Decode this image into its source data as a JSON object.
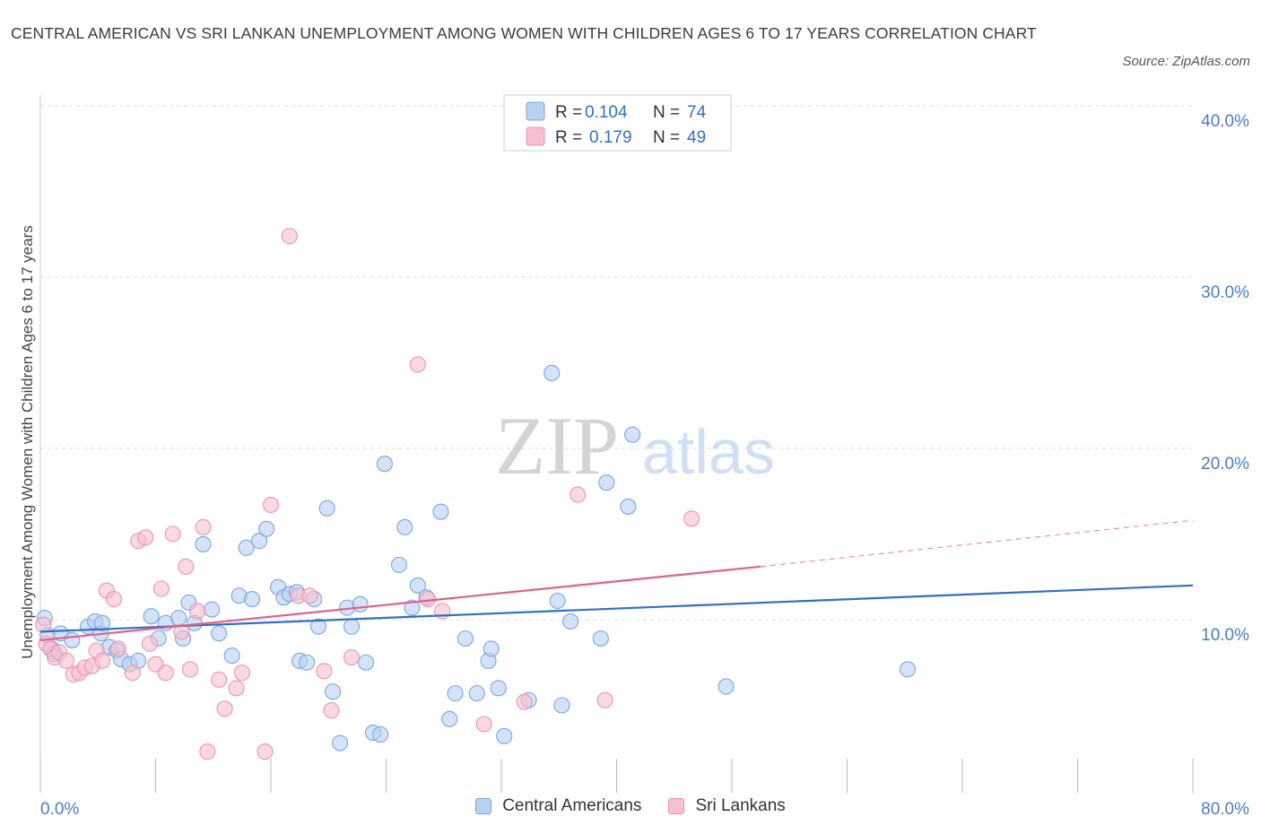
{
  "title": "CENTRAL AMERICAN VS SRI LANKAN UNEMPLOYMENT AMONG WOMEN WITH CHILDREN AGES 6 TO 17 YEARS CORRELATION CHART",
  "source": "Source: ZipAtlas.com",
  "watermark": {
    "zip": "ZIP",
    "atlas": "atlas"
  },
  "colors": {
    "blue_fill": "#b8d0f2",
    "blue_stroke": "#7aa6df",
    "blue_line": "#2f6fc9",
    "pink_fill": "#f7c0d1",
    "pink_stroke": "#ec93b0",
    "pink_line": "#e0608b",
    "tick_label": "#4a7cc8",
    "grid": "#dddddd"
  },
  "stats_legend": [
    {
      "r_label": "R =",
      "r_value": "0.104",
      "n_label": "N =",
      "n_value": "74"
    },
    {
      "r_label": "R =",
      "r_value": "0.179",
      "n_label": "N =",
      "n_value": "49"
    }
  ],
  "chart_data": {
    "type": "scatter",
    "title": "CENTRAL AMERICAN VS SRI LANKAN UNEMPLOYMENT AMONG WOMEN WITH CHILDREN AGES 6 TO 17 YEARS CORRELATION CHART",
    "xlabel": "",
    "ylabel": "Unemployment Among Women with Children Ages 6 to 17 years",
    "xlim": [
      0,
      80
    ],
    "ylim": [
      0,
      40
    ],
    "x_tick_labels": [
      "0.0%",
      "80.0%"
    ],
    "y_ticks": [
      10,
      20,
      30,
      40
    ],
    "y_tick_labels": [
      "10.0%",
      "20.0%",
      "30.0%",
      "40.0%"
    ],
    "grid": "horizontal dashed",
    "legend_position": "bottom-center",
    "series": [
      {
        "name": "Central Americans",
        "color": "#b8d0f2",
        "trend": {
          "x0": 0,
          "y0": 9.3,
          "x1": 80,
          "y1": 12.0
        },
        "points": [
          [
            0.3,
            10.1
          ],
          [
            0.5,
            9.1
          ],
          [
            0.8,
            8.3
          ],
          [
            1.0,
            8.0
          ],
          [
            1.4,
            9.2
          ],
          [
            2.2,
            8.8
          ],
          [
            3.3,
            9.6
          ],
          [
            3.8,
            9.9
          ],
          [
            4.2,
            9.2
          ],
          [
            4.8,
            8.4
          ],
          [
            5.3,
            8.2
          ],
          [
            5.6,
            7.7
          ],
          [
            6.2,
            7.4
          ],
          [
            6.8,
            7.6
          ],
          [
            7.7,
            10.2
          ],
          [
            8.2,
            8.9
          ],
          [
            8.7,
            9.8
          ],
          [
            9.6,
            10.1
          ],
          [
            9.9,
            8.9
          ],
          [
            10.3,
            11.0
          ],
          [
            10.7,
            9.8
          ],
          [
            11.3,
            14.4
          ],
          [
            11.9,
            10.6
          ],
          [
            12.4,
            9.2
          ],
          [
            13.3,
            7.9
          ],
          [
            13.8,
            11.4
          ],
          [
            14.3,
            14.2
          ],
          [
            14.7,
            11.2
          ],
          [
            15.2,
            14.6
          ],
          [
            15.7,
            15.3
          ],
          [
            16.5,
            11.9
          ],
          [
            16.9,
            11.3
          ],
          [
            17.3,
            11.5
          ],
          [
            17.8,
            11.6
          ],
          [
            18.0,
            7.6
          ],
          [
            18.5,
            7.5
          ],
          [
            19.0,
            11.2
          ],
          [
            19.3,
            9.6
          ],
          [
            19.9,
            16.5
          ],
          [
            20.3,
            5.8
          ],
          [
            20.8,
            2.8
          ],
          [
            21.3,
            10.7
          ],
          [
            21.6,
            9.6
          ],
          [
            22.2,
            10.9
          ],
          [
            22.6,
            7.5
          ],
          [
            23.1,
            3.4
          ],
          [
            23.6,
            3.3
          ],
          [
            23.9,
            19.1
          ],
          [
            24.9,
            13.2
          ],
          [
            25.3,
            15.4
          ],
          [
            25.8,
            10.7
          ],
          [
            26.2,
            12.0
          ],
          [
            26.8,
            11.3
          ],
          [
            27.8,
            16.3
          ],
          [
            28.4,
            4.2
          ],
          [
            28.8,
            5.7
          ],
          [
            29.5,
            8.9
          ],
          [
            30.3,
            5.7
          ],
          [
            31.1,
            7.6
          ],
          [
            31.3,
            8.3
          ],
          [
            31.8,
            6.0
          ],
          [
            32.2,
            3.2
          ],
          [
            33.9,
            5.3
          ],
          [
            35.5,
            24.4
          ],
          [
            35.9,
            11.1
          ],
          [
            36.2,
            5.0
          ],
          [
            36.8,
            9.9
          ],
          [
            38.9,
            8.9
          ],
          [
            39.3,
            18.0
          ],
          [
            40.8,
            16.6
          ],
          [
            41.1,
            20.8
          ],
          [
            47.6,
            6.1
          ],
          [
            60.2,
            7.1
          ],
          [
            4.3,
            9.8
          ]
        ]
      },
      {
        "name": "Sri Lankans",
        "color": "#f7c0d1",
        "trend": {
          "x0": 0,
          "y0": 8.8,
          "x1": 50,
          "y1": 13.1,
          "dash_x1": 80,
          "dash_y1": 15.8
        },
        "points": [
          [
            0.2,
            9.7
          ],
          [
            0.4,
            8.6
          ],
          [
            0.7,
            8.3
          ],
          [
            1.0,
            7.8
          ],
          [
            1.3,
            8.1
          ],
          [
            1.8,
            7.6
          ],
          [
            2.3,
            6.8
          ],
          [
            2.7,
            6.9
          ],
          [
            3.1,
            7.2
          ],
          [
            3.6,
            7.3
          ],
          [
            3.9,
            8.2
          ],
          [
            4.3,
            7.6
          ],
          [
            4.6,
            11.7
          ],
          [
            5.1,
            11.2
          ],
          [
            5.4,
            8.3
          ],
          [
            6.4,
            6.9
          ],
          [
            6.8,
            14.6
          ],
          [
            7.3,
            14.8
          ],
          [
            7.6,
            8.6
          ],
          [
            8.0,
            7.4
          ],
          [
            8.4,
            11.8
          ],
          [
            8.7,
            6.9
          ],
          [
            9.2,
            15.0
          ],
          [
            9.8,
            9.3
          ],
          [
            10.1,
            13.1
          ],
          [
            10.4,
            7.1
          ],
          [
            10.9,
            10.5
          ],
          [
            11.3,
            15.4
          ],
          [
            11.6,
            2.3
          ],
          [
            12.4,
            6.5
          ],
          [
            12.8,
            4.8
          ],
          [
            13.6,
            6.0
          ],
          [
            14.0,
            6.9
          ],
          [
            15.6,
            2.3
          ],
          [
            16.0,
            16.7
          ],
          [
            17.3,
            32.4
          ],
          [
            17.9,
            11.4
          ],
          [
            18.7,
            11.4
          ],
          [
            19.7,
            7.0
          ],
          [
            20.2,
            4.7
          ],
          [
            21.6,
            7.8
          ],
          [
            26.2,
            24.9
          ],
          [
            26.9,
            11.2
          ],
          [
            27.9,
            10.5
          ],
          [
            30.8,
            3.9
          ],
          [
            33.6,
            5.2
          ],
          [
            37.3,
            17.3
          ],
          [
            39.2,
            5.3
          ],
          [
            45.2,
            15.9
          ]
        ]
      }
    ]
  }
}
